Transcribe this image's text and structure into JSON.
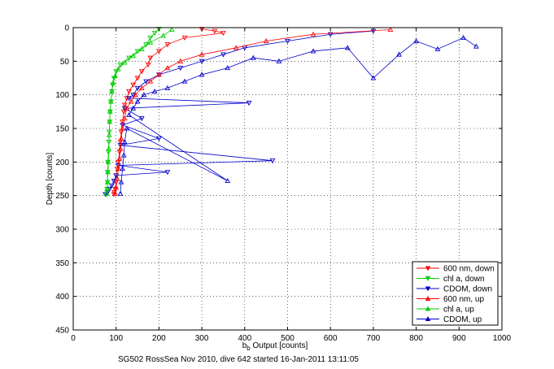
{
  "chart_data": {
    "type": "scatter",
    "title": "",
    "xlabel_main": "b",
    "xlabel_sub": "b",
    "xlabel_rest": " Output [counts]",
    "ylabel": "Depth [counts]",
    "footer": "SG502 RossSea Nov 2010, dive 642 started 16-Jan-2011 13:11:05",
    "xlim": [
      0,
      1000
    ],
    "ylim": [
      450,
      0
    ],
    "x_ticks": [
      0,
      100,
      200,
      300,
      400,
      500,
      600,
      700,
      800,
      900,
      1000
    ],
    "y_ticks": [
      0,
      50,
      100,
      150,
      200,
      250,
      300,
      350,
      400,
      450
    ],
    "grid": true,
    "legend_position": "bottom-right",
    "series": [
      {
        "name": "600 nm, down",
        "color": "#ff0000",
        "marker": "triangle-down",
        "x": [
          300,
          330,
          350,
          260,
          220,
          200,
          180,
          175,
          160,
          150,
          140,
          130,
          125,
          120,
          118,
          115,
          112,
          110,
          108,
          105,
          103,
          100,
          100,
          98,
          96,
          95
        ],
        "y": [
          2,
          5,
          8,
          15,
          25,
          35,
          45,
          55,
          65,
          75,
          85,
          95,
          105,
          115,
          125,
          140,
          155,
          170,
          185,
          200,
          210,
          220,
          230,
          240,
          245,
          248
        ]
      },
      {
        "name": "chl a, down",
        "color": "#00cc00",
        "marker": "triangle-down",
        "x": [
          200,
          190,
          180,
          170,
          150,
          130,
          110,
          100,
          95,
          92,
          90,
          88,
          86,
          85,
          84,
          83,
          82,
          81,
          80,
          80,
          79,
          78
        ],
        "y": [
          2,
          8,
          15,
          25,
          35,
          45,
          55,
          65,
          75,
          85,
          95,
          110,
          125,
          140,
          155,
          170,
          185,
          200,
          215,
          230,
          240,
          248
        ]
      },
      {
        "name": "CDOM, down",
        "color": "#0000cc",
        "marker": "triangle-down",
        "x": [
          700,
          600,
          500,
          400,
          350,
          300,
          250,
          200,
          170,
          150,
          140,
          130,
          410,
          120,
          160,
          115,
          200,
          110,
          465,
          105,
          220,
          100,
          95,
          90,
          85,
          80,
          75
        ],
        "y": [
          5,
          10,
          20,
          30,
          40,
          50,
          60,
          70,
          80,
          90,
          100,
          105,
          112,
          120,
          135,
          145,
          165,
          175,
          198,
          205,
          215,
          220,
          228,
          235,
          240,
          245,
          248
        ]
      },
      {
        "name": "600 nm, up",
        "color": "#ff0000",
        "marker": "triangle-up",
        "x": [
          740,
          560,
          450,
          380,
          300,
          250,
          220,
          200,
          180,
          160,
          145,
          135,
          125,
          120,
          115,
          112,
          110,
          108,
          105,
          103,
          100,
          98
        ],
        "y": [
          3,
          10,
          20,
          30,
          40,
          50,
          60,
          70,
          80,
          90,
          100,
          110,
          120,
          135,
          150,
          165,
          180,
          195,
          210,
          225,
          238,
          247
        ]
      },
      {
        "name": "chl a, up",
        "color": "#00cc00",
        "marker": "triangle-up",
        "x": [
          230,
          210,
          180,
          160,
          140,
          120,
          105,
          98,
          93,
          90,
          88,
          86,
          85,
          84,
          83,
          82,
          81,
          80,
          79,
          78
        ],
        "y": [
          3,
          12,
          22,
          32,
          42,
          52,
          62,
          72,
          82,
          95,
          110,
          125,
          140,
          160,
          180,
          200,
          215,
          230,
          240,
          247
        ]
      },
      {
        "name": "CDOM, up",
        "color": "#0000cc",
        "marker": "triangle-up",
        "x": [
          940,
          910,
          850,
          800,
          760,
          700,
          640,
          560,
          480,
          420,
          360,
          300,
          260,
          220,
          190,
          165,
          150,
          140,
          130,
          360,
          125,
          120,
          118,
          115,
          112,
          110
        ],
        "y": [
          28,
          15,
          32,
          20,
          40,
          75,
          30,
          35,
          50,
          45,
          60,
          70,
          80,
          90,
          95,
          100,
          110,
          120,
          130,
          228,
          150,
          170,
          190,
          210,
          230,
          247
        ]
      }
    ]
  }
}
